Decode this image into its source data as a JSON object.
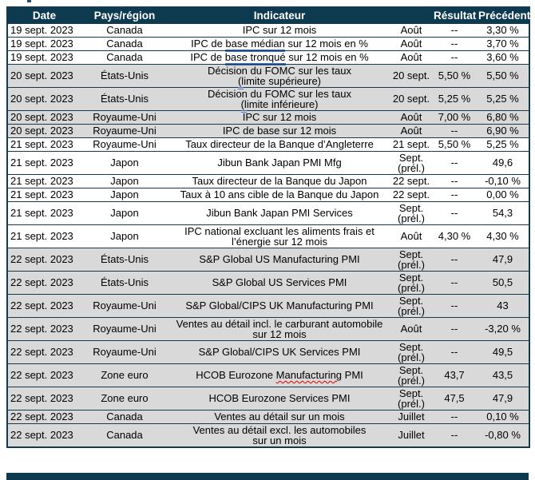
{
  "colors": {
    "header_bg": "#0e3a50",
    "border": "#15394e",
    "row_shaded_bg": "#d9d9d9",
    "grammar_underline_blue": "#4472c4",
    "spellcheck_underline_red": "#e00000",
    "header_text": "#ffffff"
  },
  "table": {
    "columns": [
      "Date",
      "Pays/région",
      "Indicateur",
      "",
      "Résultat",
      "Précédent"
    ],
    "rows": [
      {
        "date": "19 sept. 2023",
        "country": "Canada",
        "indicator": [
          [
            {
              "t": "IPC sur 12 mois"
            }
          ]
        ],
        "period": [
          "Août"
        ],
        "result": "--",
        "previous": "3,30 %",
        "shaded": false
      },
      {
        "date": "19 sept. 2023",
        "country": "Canada",
        "indicator": [
          [
            {
              "t": "IPC de "
            },
            {
              "t": "base médian",
              "u": "blue"
            },
            {
              "t": " sur 12 mois en %"
            }
          ]
        ],
        "period": [
          "Août"
        ],
        "result": "--",
        "previous": "3,70 %",
        "shaded": false
      },
      {
        "date": "19 sept. 2023",
        "country": "Canada",
        "indicator": [
          [
            {
              "t": "IPC de "
            },
            {
              "t": "base tronqué",
              "u": "blue"
            },
            {
              "t": " sur 12 mois en %"
            }
          ]
        ],
        "period": [
          "Août"
        ],
        "result": "--",
        "previous": "3,60 %",
        "shaded": false
      },
      {
        "date": "20 sept. 2023",
        "country": "États-Unis",
        "indicator": [
          [
            {
              "t": "Décision du FOMC sur les taux"
            }
          ],
          [
            {
              "t": "(l",
              "u": "blue"
            },
            {
              "t": "imite supérieure)"
            }
          ]
        ],
        "period": [
          "20 sept."
        ],
        "result": "5,50 %",
        "previous": "5,50 %",
        "shaded": true
      },
      {
        "date": "20 sept. 2023",
        "country": "États-Unis",
        "indicator": [
          [
            {
              "t": "Décision du FOMC sur les taux"
            }
          ],
          [
            {
              "t": "(l",
              "u": "blue"
            },
            {
              "t": "imite inférieure)"
            }
          ]
        ],
        "period": [
          "20 sept."
        ],
        "result": "5,25 %",
        "previous": "5,25 %",
        "shaded": true
      },
      {
        "date": "20 sept. 2023",
        "country": "Royaume-Uni",
        "indicator": [
          [
            {
              "t": "IPC sur 12 mois"
            }
          ]
        ],
        "period": [
          "Août"
        ],
        "result": "7,00 %",
        "previous": "6,80 %",
        "shaded": true
      },
      {
        "date": "20 sept. 2023",
        "country": "Royaume-Uni",
        "indicator": [
          [
            {
              "t": "IPC de base sur 12 mois"
            }
          ]
        ],
        "period": [
          "Août"
        ],
        "result": "--",
        "previous": "6,90 %",
        "shaded": true
      },
      {
        "date": "21 sept. 2023",
        "country": "Royaume-Uni",
        "indicator": [
          [
            {
              "t": "Taux directeur de la Banque d’Angleterre"
            }
          ]
        ],
        "period": [
          "21 sept."
        ],
        "result": "5,50 %",
        "previous": "5,25 %",
        "shaded": false
      },
      {
        "date": "21 sept. 2023",
        "country": "Japon",
        "indicator": [
          [
            {
              "t": "Jibun Bank Japan PMI Mfg"
            }
          ]
        ],
        "period": [
          "Sept.",
          "(prél.)"
        ],
        "result": "--",
        "previous": "49,6",
        "shaded": false
      },
      {
        "date": "21 sept. 2023",
        "country": "Japon",
        "indicator": [
          [
            {
              "t": "Taux directeur de la Banque du Japon"
            }
          ]
        ],
        "period": [
          "22 sept."
        ],
        "result": "--",
        "previous": "-0,10 %",
        "shaded": false
      },
      {
        "date": "21 sept. 2023",
        "country": "Japon",
        "indicator": [
          [
            {
              "t": "Taux à 10 ans cible de la Banque du Japon"
            }
          ]
        ],
        "period": [
          "22 sept."
        ],
        "result": "--",
        "previous": "0,00 %",
        "shaded": false
      },
      {
        "date": "21 sept. 2023",
        "country": "Japon",
        "indicator": [
          [
            {
              "t": "Jibun Bank Japan PMI Services"
            }
          ]
        ],
        "period": [
          "Sept.",
          "(prél.)"
        ],
        "result": "--",
        "previous": "54,3",
        "shaded": false
      },
      {
        "date": "21 sept. 2023",
        "country": "Japon",
        "indicator": [
          [
            {
              "t": "IPC national excluant les aliments frais et"
            }
          ],
          [
            {
              "t": "l’énergie sur 12 mois"
            }
          ]
        ],
        "period": [
          "Août"
        ],
        "result": "4,30 %",
        "previous": "4,30 %",
        "shaded": false
      },
      {
        "date": "22 sept. 2023",
        "country": "États-Unis",
        "indicator": [
          [
            {
              "t": "S&P Global US Manufacturing PMI"
            }
          ]
        ],
        "period": [
          "Sept.",
          "(prél.)"
        ],
        "result": "--",
        "previous": "47,9",
        "shaded": true
      },
      {
        "date": "22 sept. 2023",
        "country": "États-Unis",
        "indicator": [
          [
            {
              "t": "S&P Global US Services PMI"
            }
          ]
        ],
        "period": [
          "Sept.",
          "(prél.)"
        ],
        "result": "--",
        "previous": "50,5",
        "shaded": true
      },
      {
        "date": "22 sept. 2023",
        "country": "Royaume-Uni",
        "indicator": [
          [
            {
              "t": "S&P Global/CIPS UK Manufacturing PMI"
            }
          ]
        ],
        "period": [
          "Sept.",
          "(prél.)"
        ],
        "result": "--",
        "previous": "43",
        "shaded": true
      },
      {
        "date": "22 sept. 2023",
        "country": "Royaume-Uni",
        "indicator": [
          [
            {
              "t": "Ventes au détail incl. le carburant automobile"
            }
          ],
          [
            {
              "t": "sur 12 mois"
            }
          ]
        ],
        "period": [
          "Août"
        ],
        "result": "--",
        "previous": "-3,20 %",
        "shaded": true
      },
      {
        "date": "22 sept. 2023",
        "country": "Royaume-Uni",
        "indicator": [
          [
            {
              "t": "S&P Global/CIPS UK Services PMI"
            }
          ]
        ],
        "period": [
          "Sept.",
          "(prél.)"
        ],
        "result": "--",
        "previous": "49,5",
        "shaded": true
      },
      {
        "date": "22 sept. 2023",
        "country": "Zone euro",
        "indicator": [
          [
            {
              "t": "HCOB Eurozone "
            },
            {
              "t": "Manufacturing",
              "u": "red"
            },
            {
              "t": " PMI"
            }
          ]
        ],
        "period": [
          "Sept.",
          "(prél.)"
        ],
        "result": "43,7",
        "previous": "43,5",
        "shaded": true
      },
      {
        "date": "22 sept. 2023",
        "country": "Zone euro",
        "indicator": [
          [
            {
              "t": "HCOB Eurozone Services PMI"
            }
          ]
        ],
        "period": [
          "Sept.",
          "(prél.)"
        ],
        "result": "47,5",
        "previous": "47,9",
        "shaded": true
      },
      {
        "date": "22 sept. 2023",
        "country": "Canada",
        "indicator": [
          [
            {
              "t": "Ventes au détail sur un mois"
            }
          ]
        ],
        "period": [
          "Juillet"
        ],
        "result": "--",
        "previous": "0,10 %",
        "shaded": true
      },
      {
        "date": "22 sept. 2023",
        "country": "Canada",
        "indicator": [
          [
            {
              "t": "Ventes au détail excl. les automobiles"
            }
          ],
          [
            {
              "t": "sur un mois"
            }
          ]
        ],
        "period": [
          "Juillet"
        ],
        "result": "--",
        "previous": "-0,80 %",
        "shaded": true
      }
    ]
  }
}
